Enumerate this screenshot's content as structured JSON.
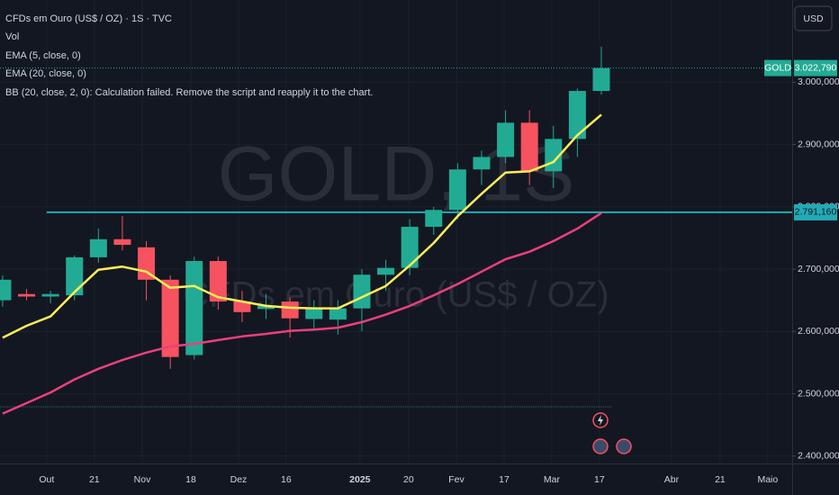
{
  "chart_data": {
    "type": "candlestick",
    "title": "CFDs em Ouro (US$ / OZ) · 1S · TVC",
    "vol_label": "Vol",
    "bb_label": "BB (20, close, 2, 0): Calculation failed. Remove the script and reapply it to the chart.",
    "currency": "USD",
    "watermark": "GOLD, 1S",
    "watermark_subtitle": "CFDs em Ouro (US$ / OZ)",
    "x": [
      0,
      1,
      2,
      3,
      4,
      5,
      6,
      7,
      8,
      9,
      10,
      11,
      12,
      13,
      14,
      15,
      16,
      17,
      18,
      19,
      20,
      21,
      22,
      23,
      24,
      25
    ],
    "open": [
      2650,
      2660,
      2656,
      2658,
      2719,
      2748,
      2735,
      2683,
      2562,
      2713,
      2648,
      2636,
      2648,
      2620,
      2619,
      2637,
      2691,
      2702,
      2768,
      2795,
      2860,
      2880,
      2935,
      2857,
      2909,
      2986
    ],
    "high": [
      2690,
      2668,
      2665,
      2722,
      2765,
      2785,
      2745,
      2690,
      2720,
      2720,
      2665,
      2660,
      2655,
      2650,
      2650,
      2700,
      2715,
      2780,
      2800,
      2870,
      2890,
      2955,
      2955,
      2930,
      2990,
      3057
    ],
    "low": [
      2640,
      2650,
      2645,
      2650,
      2710,
      2730,
      2650,
      2540,
      2555,
      2635,
      2615,
      2620,
      2590,
      2605,
      2595,
      2600,
      2665,
      2690,
      2755,
      2780,
      2835,
      2870,
      2835,
      2830,
      2880,
      2980
    ],
    "close": [
      2683,
      2656,
      2660,
      2719,
      2748,
      2739,
      2683,
      2559,
      2713,
      2648,
      2631,
      2641,
      2621,
      2637,
      2637,
      2691,
      2702,
      2768,
      2795,
      2860,
      2880,
      2935,
      2857,
      2909,
      2986,
      3022.79
    ],
    "up_color": "#22ab94",
    "down_color": "#f7525f",
    "series": [
      {
        "name": "EMA (5, close, 0)",
        "color": "#ffee58",
        "values": [
          2590,
          2609,
          2624,
          2663,
          2699,
          2704,
          2696,
          2670,
          2673,
          2655,
          2648,
          2641,
          2638,
          2637,
          2637,
          2655,
          2673,
          2706,
          2742,
          2785,
          2821,
          2855,
          2857,
          2872,
          2915,
          2948
        ]
      },
      {
        "name": "EMA (20, close, 0)",
        "color": "#ec407a",
        "values": [
          2468,
          2485,
          2502,
          2523,
          2540,
          2554,
          2566,
          2576,
          2580,
          2586,
          2592,
          2596,
          2601,
          2603,
          2606,
          2615,
          2627,
          2641,
          2658,
          2676,
          2696,
          2716,
          2728,
          2745,
          2765,
          2790
        ]
      }
    ],
    "hline": {
      "value": 2791.16,
      "label": "2.791,160",
      "color": "#22aab5"
    },
    "last_price": {
      "symbol": "GOLD",
      "value": 3022.79,
      "label": "3.022,790"
    },
    "xlim": [
      -0.11,
      32.97
    ],
    "xticks": [
      {
        "value": 1.84,
        "label": "Out"
      },
      {
        "value": 3.83,
        "label": "21"
      },
      {
        "value": 5.83,
        "label": "Nov"
      },
      {
        "value": 7.86,
        "label": "18"
      },
      {
        "value": 9.85,
        "label": "Dez"
      },
      {
        "value": 11.84,
        "label": "16"
      },
      {
        "value": 14.92,
        "label": "2025"
      },
      {
        "value": 16.95,
        "label": "20"
      },
      {
        "value": 18.95,
        "label": "Fev"
      },
      {
        "value": 20.94,
        "label": "17"
      },
      {
        "value": 22.93,
        "label": "Mar"
      },
      {
        "value": 24.92,
        "label": "17"
      },
      {
        "value": 27.93,
        "label": "Abr"
      },
      {
        "value": 29.96,
        "label": "21"
      },
      {
        "value": 31.95,
        "label": "Maio"
      }
    ],
    "ylim": [
      2388,
      3132
    ],
    "yticks": [
      {
        "value": 2400,
        "label": "2.400,000"
      },
      {
        "value": 2500,
        "label": "2.500,000"
      },
      {
        "value": 2600,
        "label": "2.600,000"
      },
      {
        "value": 2700,
        "label": "2.700,000"
      },
      {
        "value": 2800,
        "label": "2.800,000"
      },
      {
        "value": 2900,
        "label": "2.900,000"
      },
      {
        "value": 3000,
        "label": "3.000,000"
      }
    ],
    "grid": true
  }
}
